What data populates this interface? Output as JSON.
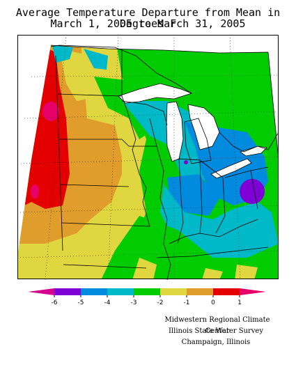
{
  "title": {
    "line1": "Average Temperature Departure from Mean in Degrees F",
    "line2": "March 1, 2005 to March 31, 2005"
  },
  "legend": {
    "colors": [
      "#d4008e",
      "#7f00d6",
      "#008bdf",
      "#00b9c8",
      "#00cc00",
      "#e0d640",
      "#e09d2c",
      "#e40000",
      "#e8006a"
    ],
    "ticks": [
      "-6",
      "-5",
      "-4",
      "-3",
      "-2",
      "-1",
      "0",
      "1"
    ]
  },
  "credits": {
    "line1": "Midwestern Regional Climate Center",
    "line2": "Illinois State Water Survey",
    "line3": "Champaign, Illinois"
  }
}
